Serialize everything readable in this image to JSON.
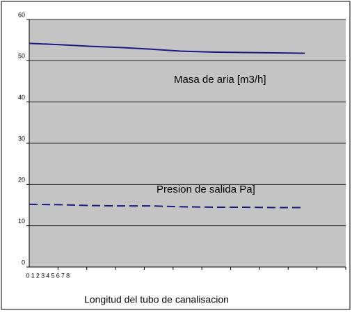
{
  "chart_data": {
    "type": "line",
    "x_label": "Longitud del tubo de canalisacion",
    "categories": [
      "0",
      "1",
      "2",
      "3",
      "4",
      "5",
      "6",
      "7",
      "8",
      null
    ],
    "series": [
      {
        "name": "Masa de aria [m3/h]",
        "color": "#1a1a80",
        "dash": false,
        "values": [
          54.2,
          53.9,
          53.5,
          53.2,
          52.8,
          52.3,
          52.1,
          52.0,
          51.9,
          51.8
        ]
      },
      {
        "name": "Presion de salida Pa]",
        "color": "#1a1a80",
        "dash": true,
        "values": [
          15.2,
          15.1,
          14.9,
          14.8,
          14.8,
          14.6,
          14.5,
          14.5,
          14.4,
          14.4
        ]
      }
    ],
    "ylim": [
      0,
      60
    ],
    "yticks": [
      0,
      10,
      20,
      30,
      40,
      50,
      60
    ],
    "grid": true
  }
}
